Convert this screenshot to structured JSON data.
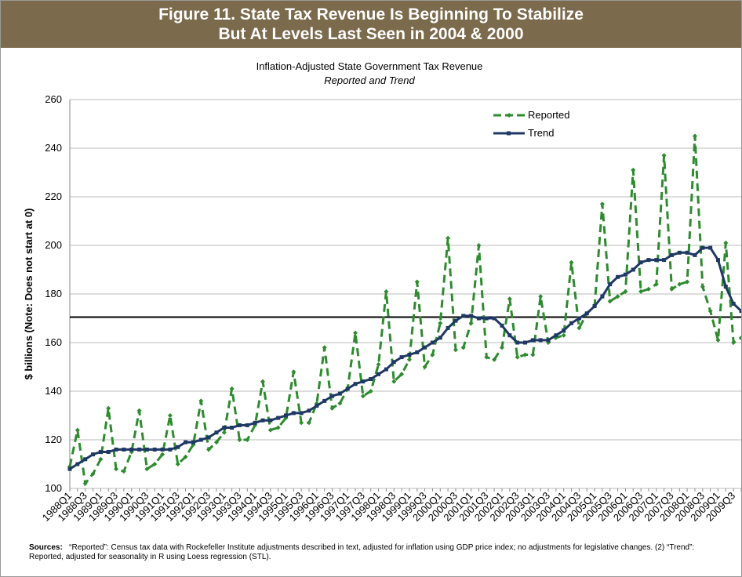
{
  "header": {
    "line1": "Figure 11. State Tax Revenue Is Beginning To Stabilize",
    "line2": "But At Levels Last Seen in 2004 & 2000"
  },
  "chart_data": {
    "type": "line",
    "title": "Inflation-Adjusted State Government Tax Revenue",
    "subtitle": "Reported and Trend",
    "y_label": "$ billions (Note: Does not start at 0)",
    "categories": [
      "1988Q1",
      null,
      "1988Q3",
      null,
      "1989Q1",
      null,
      "1989Q3",
      null,
      "1990Q1",
      null,
      "1990Q3",
      null,
      "1991Q1",
      null,
      "1991Q3",
      null,
      "1992Q1",
      null,
      "1992Q3",
      null,
      "1993Q1",
      null,
      "1993Q3",
      null,
      "1994Q1",
      null,
      "1994Q3",
      null,
      "1995Q1",
      null,
      "1995Q3",
      null,
      "1996Q1",
      null,
      "1996Q3",
      null,
      "1997Q1",
      null,
      "1997Q3",
      null,
      "1998Q1",
      null,
      "1998Q3",
      null,
      "1999Q1",
      null,
      "1999Q3",
      null,
      "2000Q1",
      null,
      "2000Q3",
      null,
      "2001Q1",
      null,
      "2001Q3",
      null,
      "2002Q1",
      null,
      "2002Q3",
      null,
      "2003Q1",
      null,
      "2003Q3",
      null,
      "2004Q1",
      null,
      "2004Q3",
      null,
      "2005Q1",
      null,
      "2005Q3",
      null,
      "2006Q1",
      null,
      "2006Q3",
      null,
      "2007Q1",
      null,
      "2007Q3",
      null,
      "2008Q1",
      null,
      "2008Q3",
      null,
      "2009Q1",
      null,
      "2009Q3",
      null
    ],
    "series": [
      {
        "name": "Reported",
        "color": "#2e8b2e",
        "dashed": true,
        "marker": "diamond",
        "values": [
          109,
          124,
          102,
          106,
          112,
          133,
          108,
          107,
          115,
          132,
          108,
          110,
          114,
          130,
          110,
          113,
          118,
          136,
          116,
          119,
          123,
          141,
          120,
          120,
          126,
          144,
          124,
          125,
          129,
          148,
          127,
          127,
          135,
          158,
          133,
          135,
          141,
          164,
          138,
          140,
          151,
          181,
          144,
          147,
          153,
          185,
          150,
          155,
          168,
          203,
          157,
          158,
          168,
          200,
          154,
          153,
          158,
          178,
          154,
          155,
          155,
          179,
          160,
          162,
          163,
          193,
          166,
          172,
          175,
          217,
          177,
          179,
          181,
          231,
          181,
          182,
          184,
          237,
          182,
          184,
          185,
          245,
          183,
          173,
          161,
          201,
          160,
          162
        ]
      },
      {
        "name": "Trend",
        "color": "#1f3864",
        "dashed": false,
        "marker": "square",
        "values": [
          108,
          110,
          112,
          114,
          115,
          115,
          116,
          116,
          116,
          116,
          116,
          116,
          116,
          116,
          117,
          119,
          119,
          120,
          121,
          123,
          125,
          125,
          126,
          126,
          127,
          128,
          128,
          129,
          130,
          131,
          131,
          132,
          134,
          136,
          138,
          139,
          141,
          143,
          144,
          145,
          147,
          149,
          152,
          154,
          155,
          156,
          158,
          160,
          162,
          166,
          169,
          171,
          171,
          170,
          170,
          170,
          167,
          163,
          160,
          160,
          161,
          161,
          161,
          163,
          165,
          168,
          170,
          172,
          175,
          179,
          184,
          187,
          188,
          190,
          193,
          194,
          194,
          194,
          196,
          197,
          197,
          196,
          199,
          199,
          194,
          183,
          176,
          173
        ]
      }
    ],
    "reference_line": 170.5,
    "ylim": [
      100,
      260
    ],
    "yticks": [
      100,
      120,
      140,
      160,
      180,
      200,
      220,
      240,
      260
    ],
    "grid": true,
    "legend": "top-right"
  },
  "sources": {
    "label": "Sources:",
    "text": "“Reported”: Census tax data with Rockefeller Institute adjustments described in text, adjusted for inflation using GDP price index; no adjustments for legislative changes. (2) “Trend”: Reported, adjusted for seasonality in R using Loess regression (STL)."
  }
}
